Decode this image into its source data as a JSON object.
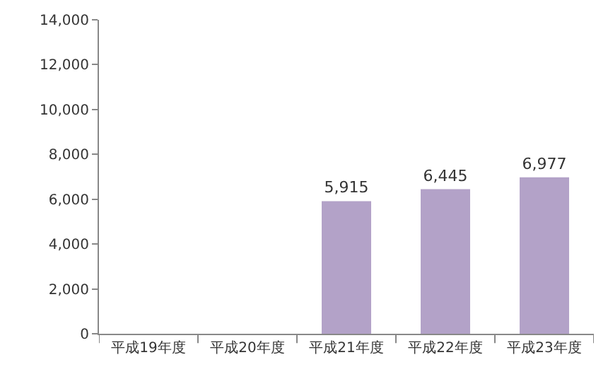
{
  "chart_data": {
    "type": "bar",
    "categories": [
      "平成19年度",
      "平成20年度",
      "平成21年度",
      "平成22年度",
      "平成23年度"
    ],
    "values": [
      null,
      null,
      5915,
      6445,
      6977
    ],
    "color": "#b3a2c8",
    "ylim": [
      0,
      14000
    ],
    "yticks": [
      {
        "value": 0,
        "label": "0"
      },
      {
        "value": 2000,
        "label": "2,000"
      },
      {
        "value": 4000,
        "label": "4,000"
      },
      {
        "value": 6000,
        "label": "6,000"
      },
      {
        "value": 8000,
        "label": "8,000"
      },
      {
        "value": 10000,
        "label": "10,000"
      },
      {
        "value": 12000,
        "label": "12,000"
      },
      {
        "value": 14000,
        "label": "14,000"
      }
    ],
    "value_labels": [
      null,
      null,
      "5,915",
      "6,445",
      "6,977"
    ]
  }
}
